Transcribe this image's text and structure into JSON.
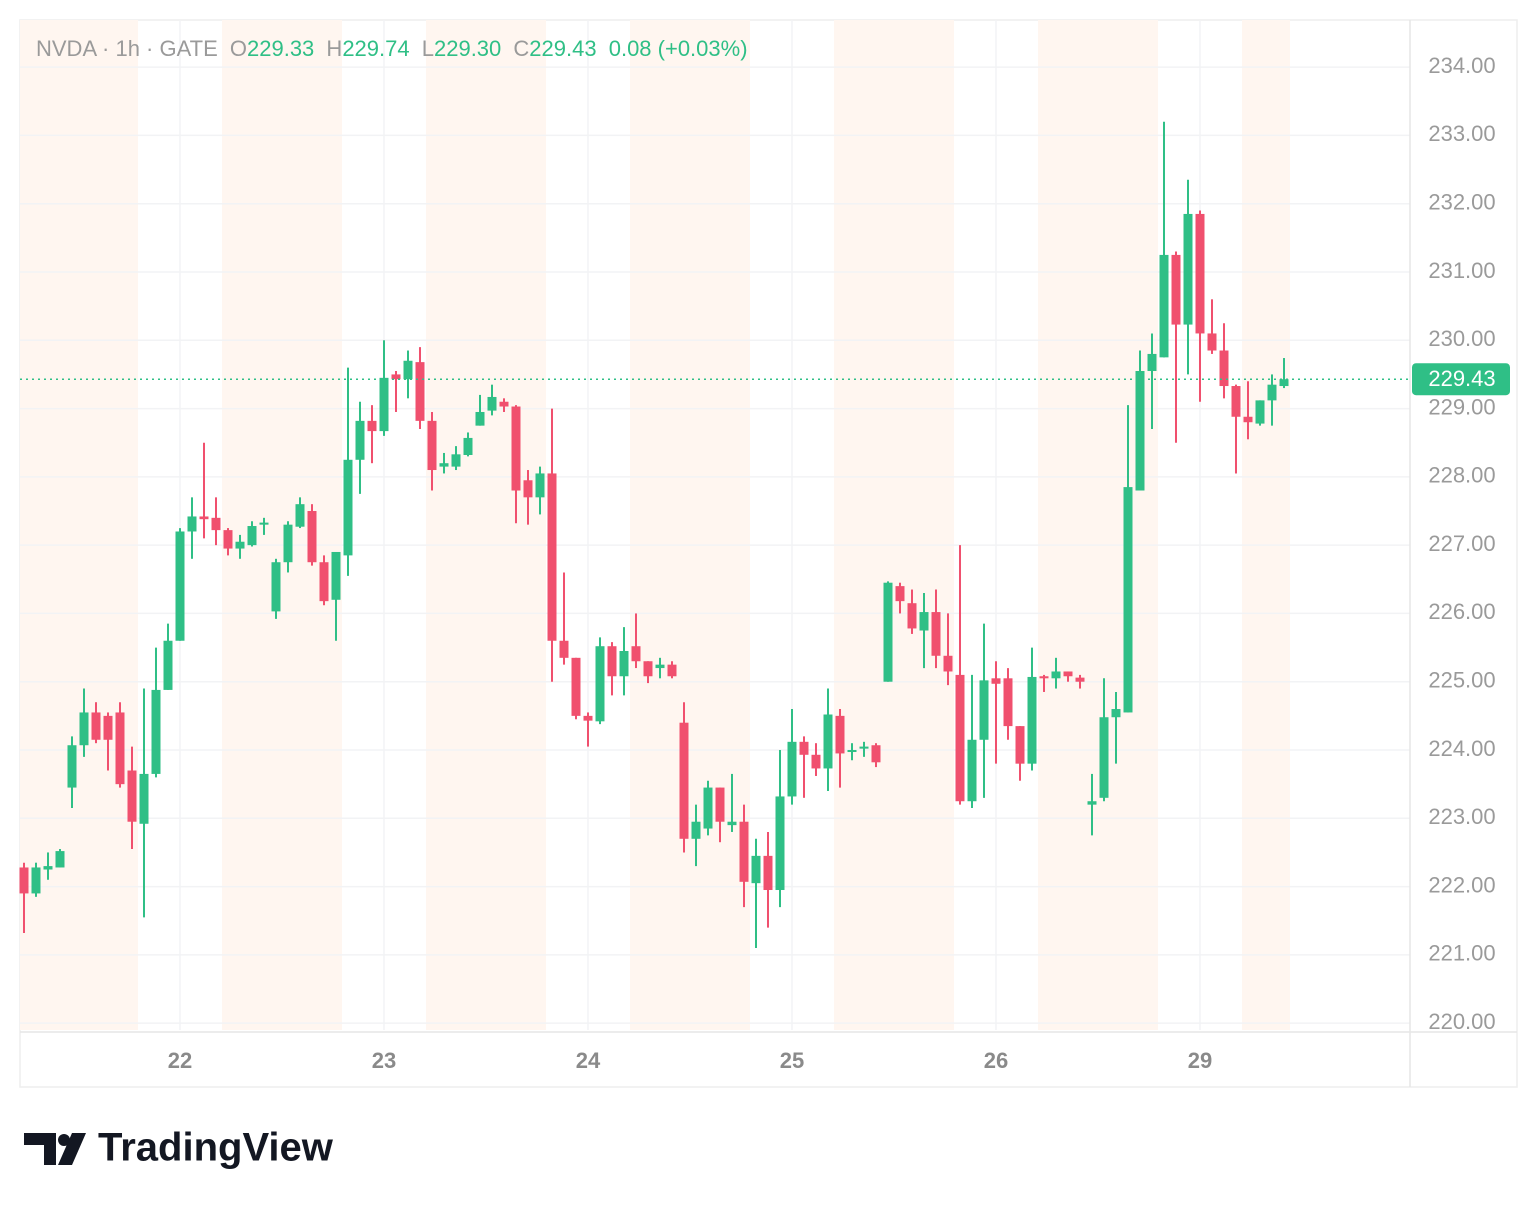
{
  "chart_data": {
    "type": "candlestick",
    "header": {
      "symbol": "NVDA · 1h · GATE",
      "open_label": "O",
      "open": "229.33",
      "high_label": "H",
      "high": "229.74",
      "low_label": "L",
      "low": "229.30",
      "close_label": "C",
      "close": "229.43",
      "change": "0.08 (+0.03%)"
    },
    "brand": "TradingView",
    "up_color": "#2fbf86",
    "down_color": "#f0506e",
    "open": [
      222.28,
      221.9,
      222.25,
      222.28,
      223.45,
      224.07,
      224.55,
      224.5,
      224.55,
      223.7,
      222.92,
      223.65,
      224.88,
      225.6,
      227.2,
      227.42,
      227.4,
      227.22,
      226.95,
      227.0,
      227.3,
      226.03,
      226.75,
      227.27,
      227.5,
      226.75,
      226.2,
      226.85,
      228.25,
      228.82,
      228.67,
      229.5,
      229.43,
      229.68,
      228.82,
      228.15,
      228.15,
      228.32,
      228.75,
      228.97,
      229.1,
      229.03,
      227.95,
      227.7,
      228.05,
      225.6,
      225.35,
      224.5,
      224.42,
      225.52,
      225.08,
      225.52,
      225.3,
      225.2,
      225.25,
      224.4,
      222.7,
      222.85,
      223.45,
      222.9,
      222.95,
      222.05,
      222.45,
      221.95,
      223.32,
      224.12,
      223.93,
      223.73,
      224.5,
      223.98,
      224.02,
      224.07,
      225.0,
      226.4,
      226.15,
      225.75,
      226.02,
      225.38,
      225.1,
      223.25,
      224.15,
      225.05,
      225.05,
      224.35,
      223.8,
      225.08,
      225.05,
      225.15,
      225.06,
      223.2,
      223.3,
      224.48,
      224.55,
      227.8,
      229.55,
      229.75,
      231.25,
      230.23,
      231.85,
      230.1,
      229.85,
      229.33,
      228.88,
      228.78,
      229.12,
      229.33
    ],
    "high": [
      222.35,
      222.35,
      222.5,
      222.55,
      224.2,
      224.9,
      224.7,
      224.55,
      224.7,
      224.05,
      224.9,
      225.5,
      225.85,
      227.25,
      227.7,
      228.5,
      227.7,
      227.25,
      227.15,
      227.35,
      227.4,
      226.8,
      227.35,
      227.7,
      227.6,
      226.85,
      226.9,
      229.6,
      229.1,
      229.05,
      230.0,
      229.55,
      229.85,
      229.9,
      228.95,
      228.35,
      228.45,
      228.65,
      229.2,
      229.35,
      229.15,
      229.05,
      228.1,
      228.15,
      229.0,
      226.6,
      225.35,
      224.55,
      225.65,
      225.58,
      225.8,
      226.0,
      225.3,
      225.35,
      225.3,
      224.7,
      223.2,
      223.55,
      223.45,
      223.65,
      223.2,
      222.7,
      222.8,
      224.0,
      224.6,
      224.2,
      224.1,
      224.9,
      224.6,
      224.1,
      224.12,
      224.1,
      226.47,
      226.45,
      226.35,
      226.3,
      226.35,
      226.0,
      227.0,
      225.1,
      225.85,
      225.3,
      225.2,
      224.35,
      225.5,
      225.1,
      225.35,
      225.15,
      225.1,
      223.65,
      225.05,
      224.85,
      229.05,
      229.85,
      230.1,
      233.2,
      231.3,
      232.35,
      231.9,
      230.6,
      230.25,
      229.35,
      229.4,
      229.12,
      229.5,
      229.74
    ],
    "low": [
      221.32,
      221.85,
      222.1,
      222.28,
      223.15,
      223.9,
      224.1,
      223.7,
      223.45,
      222.55,
      221.55,
      223.6,
      224.88,
      225.6,
      226.8,
      227.1,
      227.0,
      226.85,
      226.8,
      226.98,
      227.15,
      225.92,
      226.6,
      227.25,
      226.7,
      226.12,
      225.6,
      226.55,
      227.75,
      228.2,
      228.6,
      228.95,
      229.15,
      228.7,
      227.8,
      228.05,
      228.1,
      228.3,
      228.75,
      228.9,
      228.95,
      227.32,
      227.3,
      227.45,
      225.0,
      225.25,
      224.45,
      224.05,
      224.38,
      224.8,
      224.8,
      225.2,
      224.98,
      225.05,
      225.05,
      222.5,
      222.3,
      222.75,
      222.65,
      222.8,
      221.7,
      221.1,
      221.4,
      221.7,
      223.2,
      223.3,
      223.62,
      223.4,
      223.45,
      223.85,
      223.9,
      223.75,
      225.0,
      226.0,
      225.7,
      225.2,
      225.2,
      224.95,
      223.2,
      223.15,
      223.3,
      223.8,
      224.15,
      223.55,
      223.7,
      224.85,
      224.9,
      225.0,
      224.9,
      222.75,
      223.25,
      223.8,
      224.55,
      227.8,
      228.7,
      229.75,
      228.5,
      229.5,
      229.1,
      229.8,
      229.15,
      228.05,
      228.55,
      228.75,
      228.75,
      229.3
    ],
    "close": [
      221.9,
      222.28,
      222.3,
      222.52,
      224.07,
      224.55,
      224.15,
      224.15,
      223.5,
      222.95,
      223.65,
      224.88,
      225.6,
      227.2,
      227.42,
      227.38,
      227.22,
      226.95,
      227.05,
      227.28,
      227.33,
      226.75,
      227.3,
      227.6,
      226.75,
      226.18,
      226.9,
      228.25,
      228.82,
      228.67,
      229.45,
      229.43,
      229.7,
      228.82,
      228.1,
      228.2,
      228.33,
      228.57,
      228.95,
      229.17,
      229.03,
      227.8,
      227.7,
      228.05,
      225.6,
      225.35,
      224.5,
      224.43,
      225.52,
      225.08,
      225.45,
      225.3,
      225.08,
      225.25,
      225.08,
      222.7,
      222.95,
      223.45,
      222.95,
      222.95,
      222.07,
      222.45,
      221.95,
      223.32,
      224.12,
      223.93,
      223.73,
      224.52,
      223.95,
      224.0,
      224.05,
      223.82,
      226.45,
      226.18,
      225.78,
      226.02,
      225.38,
      225.15,
      223.25,
      224.15,
      225.02,
      224.97,
      224.35,
      223.8,
      225.07,
      225.05,
      225.15,
      225.08,
      225.0,
      223.25,
      224.48,
      224.6,
      227.85,
      229.55,
      229.8,
      231.25,
      230.23,
      231.85,
      230.1,
      229.85,
      229.33,
      228.88,
      228.8,
      229.12,
      229.35,
      229.43
    ],
    "last_price": 229.43,
    "xlim": [
      -0.333,
      115.5
    ],
    "xticks": [
      {
        "value": 13,
        "label": "22"
      },
      {
        "value": 30,
        "label": "23"
      },
      {
        "value": 47,
        "label": "24"
      },
      {
        "value": 64,
        "label": "25"
      },
      {
        "value": 81,
        "label": "26"
      },
      {
        "value": 98,
        "label": "29"
      }
    ],
    "extended_hours": [
      [
        -0.5,
        9.5
      ],
      [
        16.5,
        26.5
      ],
      [
        33.5,
        43.5
      ],
      [
        50.5,
        60.5
      ],
      [
        67.5,
        77.5
      ],
      [
        84.5,
        94.5
      ],
      [
        101.5,
        105.5
      ]
    ],
    "ylim": [
      219.9,
      234.69
    ],
    "yticks": [
      {
        "value": 220,
        "label": "220.00"
      },
      {
        "value": 221,
        "label": "221.00"
      },
      {
        "value": 222,
        "label": "222.00"
      },
      {
        "value": 223,
        "label": "223.00"
      },
      {
        "value": 224,
        "label": "224.00"
      },
      {
        "value": 225,
        "label": "225.00"
      },
      {
        "value": 226,
        "label": "226.00"
      },
      {
        "value": 227,
        "label": "227.00"
      },
      {
        "value": 228,
        "label": "228.00"
      },
      {
        "value": 229,
        "label": "229.00"
      },
      {
        "value": 230,
        "label": "230.00"
      },
      {
        "value": 231,
        "label": "231.00"
      },
      {
        "value": 232,
        "label": "232.00"
      },
      {
        "value": 233,
        "label": "233.00"
      },
      {
        "value": 234,
        "label": "234.00"
      }
    ],
    "grid": true
  }
}
